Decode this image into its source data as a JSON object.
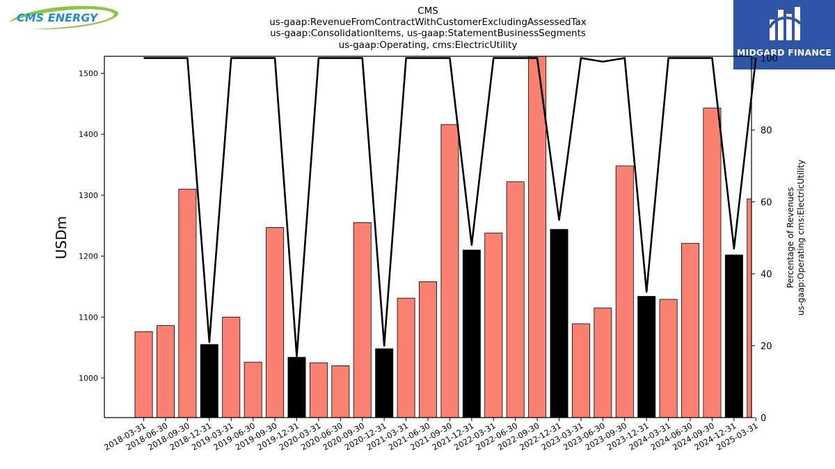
{
  "brand": {
    "left_logo_text": "CMS ENERGY",
    "right_logo_text": "MIDGARD FINANCE",
    "left_logo_colors": {
      "text": "#1a8fd6",
      "swoosh": "#8cc63f"
    },
    "right_logo_bg": "#2d56a8"
  },
  "chart_data": {
    "type": "bar",
    "title": "CMS",
    "subtitle_lines": [
      "us-gaap:RevenueFromContractWithCustomerExcludingAssessedTax",
      "us-gaap:ConsolidationItems, us-gaap:StatementBusinessSegments",
      "us-gaap:Operating, cms:ElectricUtility"
    ],
    "ylabel": "USDm",
    "y2label_lines": [
      "Percentage of Revenues",
      "us-gaap:Operating cms:ElectricUtility"
    ],
    "ylim": [
      935,
      1528
    ],
    "y_ticks": [
      1000,
      1100,
      1200,
      1300,
      1400,
      1500
    ],
    "y2lim": [
      0,
      100.5
    ],
    "y2_ticks": [
      0,
      20,
      40,
      60,
      80,
      100
    ],
    "categories": [
      "2018-03-31",
      "2018-06-30",
      "2018-09-30",
      "2018-12-31",
      "2019-03-31",
      "2019-06-30",
      "2019-09-30",
      "2019-12-31",
      "2020-03-31",
      "2020-06-30",
      "2020-09-30",
      "2020-12-31",
      "2021-03-31",
      "2021-06-30",
      "2021-09-30",
      "2021-12-31",
      "2022-03-31",
      "2022-06-30",
      "2022-09-30",
      "2022-12-31",
      "2023-03-31",
      "2023-06-30",
      "2023-09-30",
      "2023-12-31",
      "2024-03-31",
      "2024-06-30",
      "2024-09-30",
      "2024-12-31",
      "2025-03-31"
    ],
    "series": [
      {
        "type": "bar",
        "values": [
          1076,
          1086,
          1310,
          1055,
          1100,
          1026,
          1247,
          1034,
          1025,
          1020,
          1255,
          1048,
          1131,
          1158,
          1416,
          1210,
          1238,
          1322,
          1530,
          1244,
          1089,
          1115,
          1348,
          1134,
          1129,
          1221,
          1443,
          1202,
          1294
        ],
        "colors": {
          "quarter": "#fa8072",
          "annual": "#000000"
        }
      },
      {
        "type": "line",
        "axis": "right",
        "values": [
          100,
          100,
          100,
          21,
          100,
          100,
          100,
          17,
          100,
          100,
          100,
          20,
          100,
          100,
          100,
          48,
          100,
          100,
          100,
          55,
          100,
          99,
          100,
          35,
          100,
          100,
          100,
          47,
          100
        ],
        "color": "#000000"
      }
    ],
    "grid": false,
    "legend": "none"
  }
}
